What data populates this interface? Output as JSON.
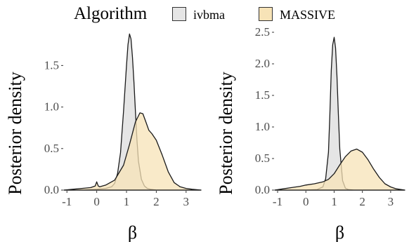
{
  "chart_data": {
    "type": "area",
    "legend": {
      "title": "Algorithm",
      "position": "top",
      "entries": [
        {
          "name": "ivbma",
          "color": "#E5E5E5"
        },
        {
          "name": "MASSIVE",
          "color": "#F7E3B7"
        }
      ]
    },
    "panels": [
      {
        "ylabel": "Posterior density",
        "xlabel": "β",
        "xlim": [
          -1.1,
          3.5
        ],
        "ylim": [
          0,
          1.9
        ],
        "xticks": [
          "-1",
          "0",
          "1",
          "2",
          "3"
        ],
        "yticks": [
          "0.0",
          "0.5",
          "1.0",
          "1.5"
        ],
        "grid": false,
        "series": [
          {
            "name": "ivbma",
            "x": [
              -1.1,
              -0.5,
              0.0,
              0.3,
              0.5,
              0.6,
              0.7,
              0.8,
              0.9,
              1.0,
              1.05,
              1.1,
              1.15,
              1.2,
              1.25,
              1.3,
              1.35,
              1.4,
              1.5,
              1.6,
              1.7,
              1.8,
              2.0,
              3.5
            ],
            "y": [
              0.0,
              0.0,
              0.01,
              0.02,
              0.04,
              0.08,
              0.2,
              0.45,
              0.95,
              1.5,
              1.75,
              1.88,
              1.82,
              1.6,
              1.3,
              0.95,
              0.6,
              0.35,
              0.13,
              0.05,
              0.02,
              0.01,
              0.0,
              0.0
            ]
          },
          {
            "name": "MASSIVE",
            "x": [
              -1.1,
              -0.8,
              -0.5,
              -0.2,
              -0.05,
              0.0,
              0.05,
              0.1,
              0.3,
              0.6,
              0.9,
              1.1,
              1.3,
              1.45,
              1.55,
              1.65,
              1.75,
              1.85,
              2.0,
              2.2,
              2.4,
              2.6,
              2.8,
              3.0,
              3.2,
              3.5
            ],
            "y": [
              0.0,
              0.01,
              0.02,
              0.03,
              0.05,
              0.1,
              0.05,
              0.04,
              0.06,
              0.12,
              0.3,
              0.55,
              0.82,
              0.93,
              0.92,
              0.82,
              0.72,
              0.68,
              0.6,
              0.42,
              0.22,
              0.09,
              0.04,
              0.02,
              0.01,
              0.0
            ]
          }
        ]
      },
      {
        "ylabel": "Posterior density",
        "xlabel": "β",
        "xlim": [
          -1.1,
          3.5
        ],
        "ylim": [
          0,
          2.5
        ],
        "xticks": [
          "-1",
          "0",
          "1",
          "2",
          "3"
        ],
        "yticks": [
          "0.0",
          "0.5",
          "1.0",
          "1.5",
          "2.0",
          "2.5"
        ],
        "grid": false,
        "series": [
          {
            "name": "ivbma",
            "x": [
              -1.1,
              0.0,
              0.4,
              0.6,
              0.7,
              0.8,
              0.85,
              0.9,
              0.95,
              1.0,
              1.05,
              1.1,
              1.15,
              1.2,
              1.3,
              1.4,
              1.5,
              1.7,
              3.5
            ],
            "y": [
              0.0,
              0.0,
              0.01,
              0.05,
              0.18,
              0.6,
              1.2,
              1.9,
              2.3,
              2.42,
              2.25,
              1.8,
              1.2,
              0.65,
              0.15,
              0.03,
              0.01,
              0.0,
              0.0
            ]
          },
          {
            "name": "MASSIVE",
            "x": [
              -1.1,
              -0.8,
              -0.5,
              -0.2,
              0.0,
              0.3,
              0.6,
              0.8,
              1.0,
              1.2,
              1.4,
              1.6,
              1.8,
              2.0,
              2.2,
              2.4,
              2.6,
              2.8,
              3.0,
              3.2,
              3.5
            ],
            "y": [
              0.0,
              0.02,
              0.04,
              0.06,
              0.08,
              0.1,
              0.13,
              0.17,
              0.26,
              0.4,
              0.53,
              0.62,
              0.65,
              0.6,
              0.48,
              0.33,
              0.2,
              0.1,
              0.05,
              0.02,
              0.0
            ]
          }
        ]
      }
    ]
  }
}
